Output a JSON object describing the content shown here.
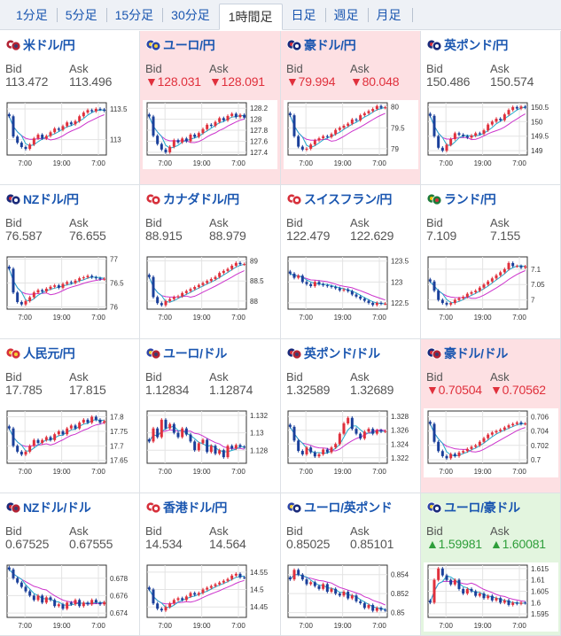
{
  "tabs": [
    {
      "label": "1分足",
      "active": false
    },
    {
      "label": "5分足",
      "active": false
    },
    {
      "label": "15分足",
      "active": false
    },
    {
      "label": "30分足",
      "active": false
    },
    {
      "label": "1時間足",
      "active": true
    },
    {
      "label": "日足",
      "active": false
    },
    {
      "label": "週足",
      "active": false
    },
    {
      "label": "月足",
      "active": false
    }
  ],
  "labels": {
    "bid": "Bid",
    "ask": "Ask"
  },
  "colors": {
    "link_blue": "#1a56b0",
    "price_down": "#e0303c",
    "price_up": "#2e9e3a",
    "highlight_red": "#fde0e3",
    "highlight_green": "#e3f5df",
    "candle_red": "#e0303c",
    "candle_blue": "#1a3f9a",
    "ma_magenta": "#cc33cc",
    "ma_cyan": "#22aacc"
  },
  "pairs": [
    {
      "name": "米ドル/円",
      "flag": "us-flag-icon",
      "bid": "113.472",
      "ask": "113.496",
      "direction": "none",
      "chart_data": {
        "type": "candlestick",
        "x_ticks": [
          "7:00",
          "19:00",
          "7:00"
        ],
        "y_ticks": [
          "113.5",
          "113"
        ],
        "ylim": [
          112.75,
          113.6
        ],
        "closes": [
          113.38,
          113.05,
          112.95,
          112.88,
          112.85,
          112.92,
          113.02,
          113.08,
          113.02,
          113.06,
          113.12,
          113.18,
          113.16,
          113.22,
          113.28,
          113.25,
          113.3,
          113.38,
          113.44,
          113.48,
          113.46,
          113.5,
          113.49,
          113.47
        ]
      }
    },
    {
      "name": "ユーロ/円",
      "flag": "eu-flag-icon",
      "bid": "▼128.031",
      "ask": "▼128.091",
      "direction": "down",
      "chart_data": {
        "type": "candlestick",
        "x_ticks": [
          "7:00",
          "19:00",
          "7:00"
        ],
        "y_ticks": [
          "128.2",
          "128",
          "127.8",
          "127.6",
          "127.4"
        ],
        "ylim": [
          127.35,
          128.3
        ],
        "closes": [
          128.05,
          127.7,
          127.55,
          127.45,
          127.4,
          127.5,
          127.62,
          127.58,
          127.65,
          127.6,
          127.72,
          127.68,
          127.75,
          127.82,
          127.9,
          127.88,
          127.95,
          128.02,
          127.98,
          128.06,
          128.1,
          128.04,
          128.08,
          128.03
        ]
      }
    },
    {
      "name": "豪ドル/円",
      "flag": "au-flag-icon",
      "bid": "▼79.994",
      "ask": "▼80.048",
      "direction": "down",
      "chart_data": {
        "type": "candlestick",
        "x_ticks": [
          "7:00",
          "19:00",
          "7:00"
        ],
        "y_ticks": [
          "80",
          "79.5",
          "79"
        ],
        "ylim": [
          78.85,
          80.1
        ],
        "closes": [
          79.8,
          79.3,
          79.05,
          78.98,
          79.0,
          79.1,
          79.2,
          79.25,
          79.3,
          79.28,
          79.35,
          79.45,
          79.5,
          79.55,
          79.6,
          79.7,
          79.68,
          79.8,
          79.85,
          79.9,
          79.95,
          80.02,
          79.98,
          79.99
        ]
      }
    },
    {
      "name": "英ポンド/円",
      "flag": "uk-flag-icon",
      "bid": "150.486",
      "ask": "150.574",
      "direction": "none",
      "chart_data": {
        "type": "candlestick",
        "x_ticks": [
          "7:00",
          "19:00",
          "7:00"
        ],
        "y_ticks": [
          "150.5",
          "150",
          "149.5",
          "149"
        ],
        "ylim": [
          148.85,
          150.65
        ],
        "closes": [
          150.2,
          149.5,
          149.1,
          149.0,
          149.2,
          149.4,
          149.6,
          149.55,
          149.5,
          149.45,
          149.52,
          149.6,
          149.58,
          149.7,
          149.9,
          150.0,
          150.1,
          150.05,
          150.25,
          150.4,
          150.5,
          150.45,
          150.52,
          150.48
        ]
      }
    },
    {
      "name": "NZドル/円",
      "flag": "nz-flag-icon",
      "bid": "76.587",
      "ask": "76.655",
      "direction": "none",
      "chart_data": {
        "type": "candlestick",
        "x_ticks": [
          "7:00",
          "19:00",
          "7:00"
        ],
        "y_ticks": [
          "77",
          "76.5",
          "76"
        ],
        "ylim": [
          75.95,
          77.05
        ],
        "closes": [
          76.8,
          76.3,
          76.1,
          76.05,
          76.12,
          76.2,
          76.3,
          76.35,
          76.32,
          76.38,
          76.42,
          76.45,
          76.4,
          76.48,
          76.52,
          76.5,
          76.55,
          76.6,
          76.62,
          76.65,
          76.62,
          76.6,
          76.58,
          76.59
        ]
      }
    },
    {
      "name": "カナダドル/円",
      "flag": "ca-flag-icon",
      "bid": "88.915",
      "ask": "88.979",
      "direction": "none",
      "chart_data": {
        "type": "candlestick",
        "x_ticks": [
          "7:00",
          "19:00",
          "7:00"
        ],
        "y_ticks": [
          "89",
          "88.5",
          "88"
        ],
        "ylim": [
          87.8,
          89.1
        ],
        "closes": [
          88.6,
          88.1,
          87.95,
          87.9,
          88.0,
          88.05,
          88.1,
          88.12,
          88.2,
          88.25,
          88.3,
          88.35,
          88.4,
          88.45,
          88.5,
          88.55,
          88.6,
          88.7,
          88.75,
          88.8,
          88.88,
          88.95,
          88.92,
          88.92
        ]
      }
    },
    {
      "name": "スイスフラン/円",
      "flag": "ch-flag-icon",
      "bid": "122.479",
      "ask": "122.629",
      "direction": "none",
      "chart_data": {
        "type": "candlestick",
        "x_ticks": [
          "7:00",
          "19:00",
          "7:00"
        ],
        "y_ticks": [
          "123.5",
          "123",
          "122.5"
        ],
        "ylim": [
          122.35,
          123.6
        ],
        "closes": [
          123.2,
          123.1,
          123.15,
          123.0,
          122.95,
          122.9,
          123.0,
          122.95,
          122.92,
          122.9,
          122.88,
          122.85,
          122.8,
          122.82,
          122.78,
          122.7,
          122.65,
          122.6,
          122.55,
          122.5,
          122.45,
          122.5,
          122.48,
          122.48
        ]
      }
    },
    {
      "name": "ランド/円",
      "flag": "za-flag-icon",
      "bid": "7.109",
      "ask": "7.155",
      "direction": "none",
      "chart_data": {
        "type": "candlestick",
        "x_ticks": [
          "7:00",
          "19:00",
          "7:00"
        ],
        "y_ticks": [
          "7.1",
          "7.05",
          "7"
        ],
        "ylim": [
          6.97,
          7.14
        ],
        "closes": [
          7.06,
          7.03,
          7.0,
          6.99,
          6.985,
          6.99,
          7.0,
          7.005,
          7.01,
          7.02,
          7.025,
          7.03,
          7.04,
          7.05,
          7.06,
          7.07,
          7.08,
          7.09,
          7.1,
          7.12,
          7.11,
          7.11,
          7.105,
          7.109
        ]
      }
    },
    {
      "name": "人民元/円",
      "flag": "cn-flag-icon",
      "bid": "17.785",
      "ask": "17.815",
      "direction": "none",
      "chart_data": {
        "type": "candlestick",
        "x_ticks": [
          "7:00",
          "19:00",
          "7:00"
        ],
        "y_ticks": [
          "17.8",
          "17.75",
          "17.7",
          "17.65"
        ],
        "ylim": [
          17.64,
          17.82
        ],
        "closes": [
          17.76,
          17.7,
          17.68,
          17.67,
          17.68,
          17.7,
          17.72,
          17.71,
          17.72,
          17.73,
          17.72,
          17.74,
          17.75,
          17.74,
          17.76,
          17.77,
          17.76,
          17.78,
          17.79,
          17.78,
          17.8,
          17.79,
          17.78,
          17.785
        ]
      }
    },
    {
      "name": "ユーロ/ドル",
      "flag": "eu-us-flag-icon",
      "bid": "1.12834",
      "ask": "1.12874",
      "direction": "none",
      "chart_data": {
        "type": "candlestick",
        "x_ticks": [
          "7:00",
          "19:00",
          "7:00"
        ],
        "y_ticks": [
          "1.132",
          "1.13",
          "1.128"
        ],
        "ylim": [
          1.1265,
          1.1325
        ],
        "closes": [
          1.129,
          1.1305,
          1.1295,
          1.1315,
          1.1305,
          1.131,
          1.13,
          1.1295,
          1.1305,
          1.1298,
          1.129,
          1.128,
          1.1288,
          1.1292,
          1.1278,
          1.1285,
          1.1276,
          1.128,
          1.1272,
          1.1285,
          1.1282,
          1.1286,
          1.1284,
          1.12834
        ]
      }
    },
    {
      "name": "英ポンド/ドル",
      "flag": "uk-us-flag-icon",
      "bid": "1.32589",
      "ask": "1.32689",
      "direction": "none",
      "chart_data": {
        "type": "candlestick",
        "x_ticks": [
          "7:00",
          "19:00",
          "7:00"
        ],
        "y_ticks": [
          "1.328",
          "1.326",
          "1.324",
          "1.322"
        ],
        "ylim": [
          1.3212,
          1.3288
        ],
        "closes": [
          1.3265,
          1.3245,
          1.323,
          1.3225,
          1.3235,
          1.3228,
          1.3222,
          1.3225,
          1.3232,
          1.3228,
          1.3235,
          1.324,
          1.3255,
          1.327,
          1.3278,
          1.3262,
          1.3255,
          1.3248,
          1.3258,
          1.3262,
          1.3255,
          1.326,
          1.3258,
          1.32589
        ]
      }
    },
    {
      "name": "豪ドル/ドル",
      "flag": "au-us-flag-icon",
      "bid": "▼0.70504",
      "ask": "▼0.70562",
      "direction": "down",
      "chart_data": {
        "type": "candlestick",
        "x_ticks": [
          "7:00",
          "19:00",
          "7:00"
        ],
        "y_ticks": [
          "0.706",
          "0.704",
          "0.702",
          "0.7"
        ],
        "ylim": [
          0.6995,
          0.7068
        ],
        "closes": [
          0.705,
          0.7025,
          0.7012,
          0.7005,
          0.7002,
          0.7008,
          0.7005,
          0.701,
          0.7012,
          0.7015,
          0.7018,
          0.702,
          0.7025,
          0.703,
          0.7035,
          0.7038,
          0.704,
          0.7042,
          0.7045,
          0.7048,
          0.705,
          0.7052,
          0.705,
          0.70504
        ]
      }
    },
    {
      "name": "NZドル/ドル",
      "flag": "nz-us-flag-icon",
      "bid": "0.67525",
      "ask": "0.67555",
      "direction": "none",
      "chart_data": {
        "type": "candlestick",
        "x_ticks": [
          "7:00",
          "19:00",
          "7:00"
        ],
        "y_ticks": [
          "0.678",
          "0.676",
          "0.674"
        ],
        "ylim": [
          0.6735,
          0.6795
        ],
        "closes": [
          0.679,
          0.678,
          0.6775,
          0.677,
          0.6765,
          0.676,
          0.6755,
          0.676,
          0.6752,
          0.6758,
          0.6755,
          0.6748,
          0.675,
          0.6745,
          0.6752,
          0.675,
          0.6755,
          0.6748,
          0.6752,
          0.675,
          0.6755,
          0.6752,
          0.675,
          0.67525
        ]
      }
    },
    {
      "name": "香港ドル/円",
      "flag": "hk-flag-icon",
      "bid": "14.534",
      "ask": "14.564",
      "direction": "none",
      "chart_data": {
        "type": "candlestick",
        "x_ticks": [
          "7:00",
          "19:00",
          "7:00"
        ],
        "y_ticks": [
          "14.55",
          "14.5",
          "14.45"
        ],
        "ylim": [
          14.42,
          14.57
        ],
        "closes": [
          14.5,
          14.46,
          14.445,
          14.44,
          14.45,
          14.46,
          14.47,
          14.475,
          14.47,
          14.48,
          14.49,
          14.485,
          14.49,
          14.5,
          14.505,
          14.51,
          14.515,
          14.52,
          14.525,
          14.53,
          14.54,
          14.545,
          14.535,
          14.534
        ]
      }
    },
    {
      "name": "ユーロ/英ポンド",
      "flag": "eu-uk-flag-icon",
      "bid": "0.85025",
      "ask": "0.85101",
      "direction": "none",
      "chart_data": {
        "type": "candlestick",
        "x_ticks": [
          "7:00",
          "19:00",
          "7:00"
        ],
        "y_ticks": [
          "0.854",
          "0.852",
          "0.85"
        ],
        "ylim": [
          0.8495,
          0.855
        ],
        "closes": [
          0.8535,
          0.8545,
          0.854,
          0.8535,
          0.853,
          0.8532,
          0.8528,
          0.8525,
          0.853,
          0.8522,
          0.8525,
          0.852,
          0.8518,
          0.8522,
          0.8515,
          0.8518,
          0.8512,
          0.851,
          0.8505,
          0.8508,
          0.8502,
          0.8505,
          0.8503,
          0.85025
        ]
      }
    },
    {
      "name": "ユーロ/豪ドル",
      "flag": "eu-au-flag-icon",
      "bid": "▲1.59981",
      "ask": "▲1.60081",
      "direction": "up",
      "chart_data": {
        "type": "candlestick",
        "x_ticks": [
          "7:00",
          "19:00",
          "7:00"
        ],
        "y_ticks": [
          "1.615",
          "1.61",
          "1.605",
          "1.6",
          "1.595"
        ],
        "ylim": [
          1.5935,
          1.6165
        ],
        "closes": [
          1.6,
          1.61,
          1.615,
          1.612,
          1.61,
          1.608,
          1.61,
          1.606,
          1.604,
          1.606,
          1.605,
          1.603,
          1.604,
          1.602,
          1.603,
          1.601,
          1.602,
          1.6,
          1.601,
          1.599,
          1.6,
          1.5995,
          1.6,
          1.59981
        ]
      }
    }
  ]
}
